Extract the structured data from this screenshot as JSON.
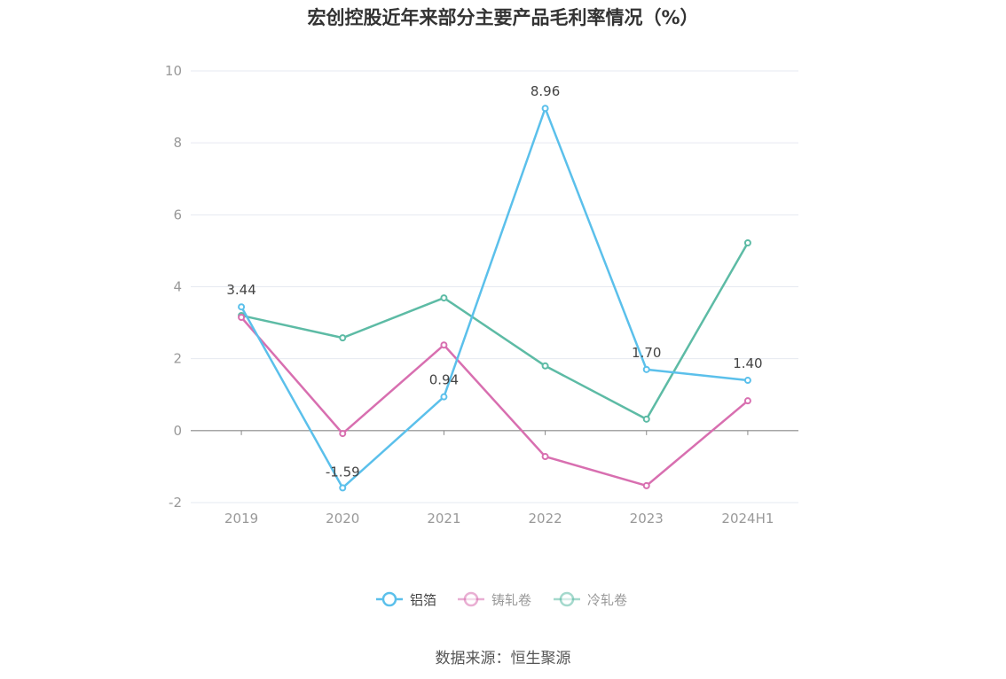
{
  "chart_data": {
    "type": "line",
    "title": "宏创控股近年来部分主要产品毛利率情况（%）",
    "source": "数据来源：恒生聚源",
    "categories": [
      "2019",
      "2020",
      "2021",
      "2022",
      "2023",
      "2024H1"
    ],
    "ylim": [
      -2,
      10
    ],
    "yticks": [
      -2,
      0,
      2,
      4,
      6,
      8,
      10
    ],
    "grid": true,
    "legend_position": "bottom",
    "series": [
      {
        "name": "铝箔",
        "color": "#5bc0eb",
        "values": [
          3.44,
          -1.59,
          0.94,
          8.96,
          1.7,
          1.4
        ],
        "labels": [
          "3.44",
          "-1.59",
          "0.94",
          "8.96",
          "1.70",
          "1.40"
        ]
      },
      {
        "name": "铸轧卷",
        "color": "#d86fb0",
        "values": [
          3.15,
          -0.08,
          2.38,
          -0.72,
          -1.53,
          0.83
        ]
      },
      {
        "name": "冷轧卷",
        "color": "#5dbba5",
        "values": [
          3.2,
          2.58,
          3.69,
          1.8,
          0.32,
          5.22
        ]
      }
    ]
  }
}
